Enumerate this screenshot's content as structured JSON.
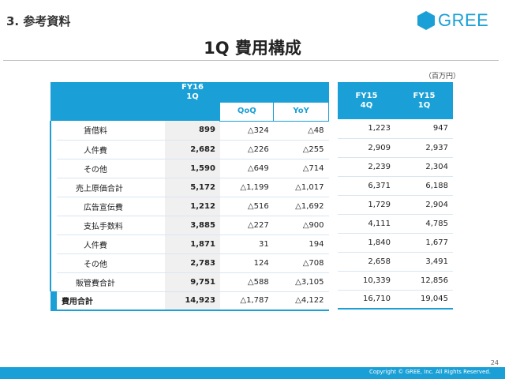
{
  "header": {
    "section": "3. 参考資料",
    "title": "1Q 費用構成",
    "logo_text": "GREE",
    "brand_color": "#1aa0d6"
  },
  "unit": "（百万円）",
  "table": {
    "col_fy16": [
      "FY16",
      "1Q"
    ],
    "col_qoq": "QoQ",
    "col_yoy": "YoY",
    "col_fy15_4q": [
      "FY15",
      "4Q"
    ],
    "col_fy15_1q": [
      "FY15",
      "1Q"
    ],
    "rows": [
      {
        "label": "賃借料",
        "fy16": "899",
        "qoq": "△324",
        "yoy": "△48",
        "fy15_4q": "1,223",
        "fy15_1q": "947"
      },
      {
        "label": "人件費",
        "fy16": "2,682",
        "qoq": "△226",
        "yoy": "△255",
        "fy15_4q": "2,909",
        "fy15_1q": "2,937"
      },
      {
        "label": "その他",
        "fy16": "1,590",
        "qoq": "△649",
        "yoy": "△714",
        "fy15_4q": "2,239",
        "fy15_1q": "2,304"
      },
      {
        "label": "売上原価合計",
        "fy16": "5,172",
        "qoq": "△1,199",
        "yoy": "△1,017",
        "fy15_4q": "6,371",
        "fy15_1q": "6,188"
      },
      {
        "label": "広告宣伝費",
        "fy16": "1,212",
        "qoq": "△516",
        "yoy": "△1,692",
        "fy15_4q": "1,729",
        "fy15_1q": "2,904"
      },
      {
        "label": "支払手数料",
        "fy16": "3,885",
        "qoq": "△227",
        "yoy": "△900",
        "fy15_4q": "4,111",
        "fy15_1q": "4,785"
      },
      {
        "label": "人件費",
        "fy16": "1,871",
        "qoq": "31",
        "yoy": "194",
        "fy15_4q": "1,840",
        "fy15_1q": "1,677"
      },
      {
        "label": "その他",
        "fy16": "2,783",
        "qoq": "124",
        "yoy": "△708",
        "fy15_4q": "2,658",
        "fy15_1q": "3,491"
      },
      {
        "label": "販管費合計",
        "fy16": "9,751",
        "qoq": "△588",
        "yoy": "△3,105",
        "fy15_4q": "10,339",
        "fy15_1q": "12,856"
      },
      {
        "label": "費用合計",
        "fy16": "14,923",
        "qoq": "△1,787",
        "yoy": "△4,122",
        "fy15_4q": "16,710",
        "fy15_1q": "19,045"
      }
    ]
  },
  "footer": {
    "copyright": "Copyright © GREE, Inc. All Rights Reserved.",
    "page": "24"
  }
}
